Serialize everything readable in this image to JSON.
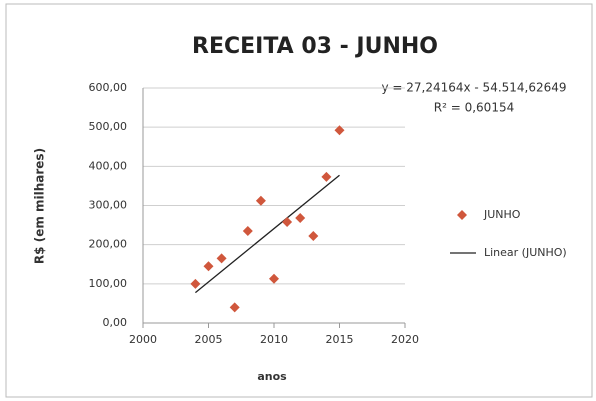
{
  "chart_data": {
    "type": "scatter",
    "title": "RECEITA 03 - JUNHO",
    "x_label": "anos",
    "y_label": "R$ (em milhares)",
    "series": [
      {
        "name": "JUNHO",
        "color": "#d0573c",
        "x": [
          2004,
          2005,
          2006,
          2007,
          2008,
          2009,
          2010,
          2011,
          2012,
          2013,
          2014,
          2015
        ],
        "values": [
          100,
          145,
          165,
          40,
          235,
          312,
          113,
          258,
          268,
          222,
          373,
          492
        ]
      }
    ],
    "trendline": {
      "name": "Linear (JUNHO)",
      "color": "#222222",
      "x": [
        2004,
        2015
      ],
      "values": [
        77.6,
        377.3
      ]
    },
    "annotations": [
      "y = 27,24164x - 54.514,62649",
      "R² = 0,60154"
    ],
    "xlim": [
      2000,
      2020
    ],
    "xticks": [
      2000,
      2005,
      2010,
      2015,
      2020
    ],
    "ylim": [
      0,
      600
    ],
    "yticks": [
      {
        "value": 0,
        "label": "0,00"
      },
      {
        "value": 100,
        "label": "100,00"
      },
      {
        "value": 200,
        "label": "200,00"
      },
      {
        "value": 300,
        "label": "300,00"
      },
      {
        "value": 400,
        "label": "400,00"
      },
      {
        "value": 500,
        "label": "500,00"
      },
      {
        "value": 600,
        "label": "600,00"
      }
    ],
    "grid": true,
    "legend": "right"
  }
}
